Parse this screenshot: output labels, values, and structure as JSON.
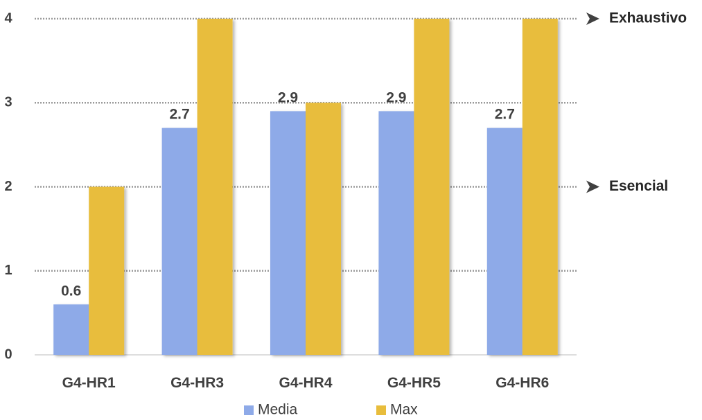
{
  "chart_data": {
    "type": "bar",
    "categories": [
      "G4-HR1",
      "G4-HR3",
      "G4-HR4",
      "G4-HR5",
      "G4-HR6"
    ],
    "series": [
      {
        "name": "Media",
        "values": [
          0.6,
          2.7,
          2.9,
          2.9,
          2.7
        ],
        "color": "#8eaae8",
        "data_labels": [
          "0.6",
          "2.7",
          "2.9",
          "2.9",
          "2.7"
        ]
      },
      {
        "name": "Max",
        "values": [
          2,
          4,
          3,
          4,
          4
        ],
        "color": "#e8bd3c"
      }
    ],
    "yticks": [
      "0",
      "1",
      "2",
      "3",
      "4"
    ],
    "ylim": [
      0,
      4
    ],
    "grid": "dotted horizontal",
    "legend_position": "bottom",
    "reference_lines": [
      {
        "value": 4,
        "label": "Exhaustivo"
      },
      {
        "value": 2,
        "label": "Esencial"
      }
    ]
  }
}
